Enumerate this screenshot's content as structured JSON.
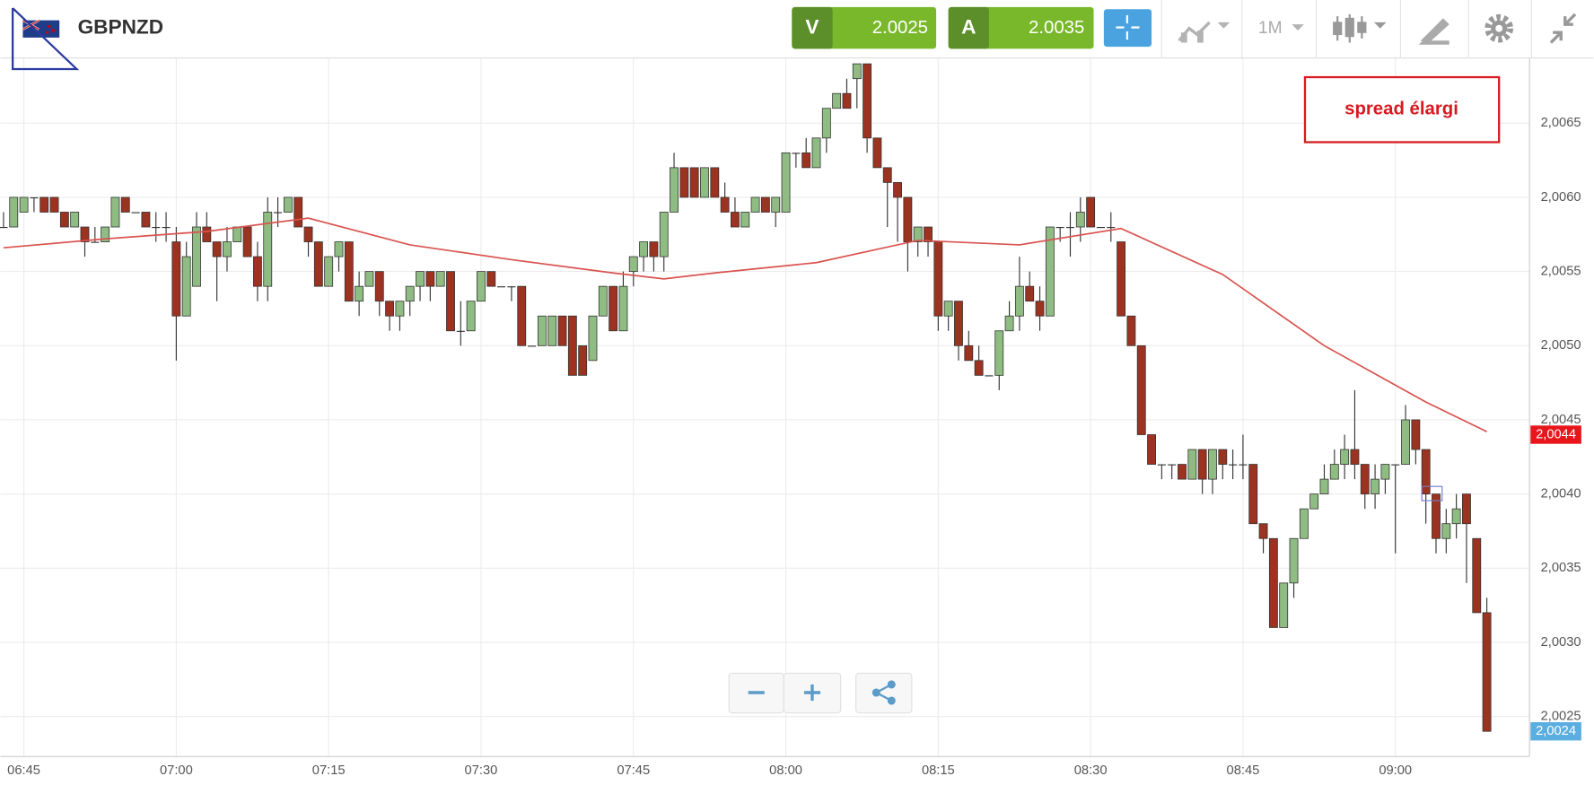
{
  "header": {
    "symbol": "GBPNZD",
    "sell_label": "V",
    "sell_price": "2.0025",
    "buy_label": "A",
    "buy_price": "2.0035",
    "timeframe": "1M"
  },
  "chart_data": {
    "type": "candlestick",
    "x": [
      "06:43",
      "06:44",
      "06:45",
      "06:46",
      "06:47",
      "06:48",
      "06:49",
      "06:50",
      "06:51",
      "06:52",
      "06:53",
      "06:54",
      "06:55",
      "06:56",
      "06:57",
      "06:58",
      "06:59",
      "07:00",
      "07:01",
      "07:02",
      "07:03",
      "07:04",
      "07:05",
      "07:06",
      "07:07",
      "07:08",
      "07:09",
      "07:10",
      "07:11",
      "07:12",
      "07:13",
      "07:14",
      "07:15",
      "07:16",
      "07:17",
      "07:18",
      "07:19",
      "07:20",
      "07:21",
      "07:22",
      "07:23",
      "07:24",
      "07:25",
      "07:26",
      "07:27",
      "07:28",
      "07:29",
      "07:30",
      "07:31",
      "07:32",
      "07:33",
      "07:34",
      "07:35",
      "07:36",
      "07:37",
      "07:38",
      "07:39",
      "07:40",
      "07:41",
      "07:42",
      "07:43",
      "07:44",
      "07:45",
      "07:46",
      "07:47",
      "07:48",
      "07:49",
      "07:50",
      "07:51",
      "07:52",
      "07:53",
      "07:54",
      "07:55",
      "07:56",
      "07:57",
      "07:58",
      "07:59",
      "08:00",
      "08:01",
      "08:02",
      "08:03",
      "08:04",
      "08:05",
      "08:06",
      "08:07",
      "08:08",
      "08:09",
      "08:10",
      "08:11",
      "08:12",
      "08:13",
      "08:14",
      "08:15",
      "08:16",
      "08:17",
      "08:18",
      "08:19",
      "08:20",
      "08:21",
      "08:22",
      "08:23",
      "08:24",
      "08:25",
      "08:26",
      "08:27",
      "08:28",
      "08:29",
      "08:30",
      "08:31",
      "08:32",
      "08:33",
      "08:34",
      "08:35",
      "08:36",
      "08:37",
      "08:38",
      "08:39",
      "08:40",
      "08:41",
      "08:42",
      "08:43",
      "08:44",
      "08:45",
      "08:46",
      "08:47",
      "08:48",
      "08:49",
      "08:50",
      "08:51",
      "08:52",
      "08:53",
      "08:54",
      "08:55",
      "08:56",
      "08:57",
      "08:58",
      "08:59",
      "09:00",
      "09:01",
      "09:02",
      "09:03",
      "09:04",
      "09:05",
      "09:06",
      "09:07",
      "09:08",
      "09:09"
    ],
    "open": [
      2.0058,
      2.0058,
      2.0059,
      2.006,
      2.006,
      2.006,
      2.0059,
      2.0058,
      2.0058,
      2.0057,
      2.0057,
      2.0058,
      2.006,
      2.0059,
      2.0059,
      2.0058,
      2.0058,
      2.0057,
      2.0052,
      2.0054,
      2.0058,
      2.0057,
      2.0056,
      2.0057,
      2.0058,
      2.0056,
      2.0054,
      2.0059,
      2.0059,
      2.006,
      2.0058,
      2.0057,
      2.0054,
      2.0056,
      2.0057,
      2.0053,
      2.0054,
      2.0055,
      2.0053,
      2.0052,
      2.0053,
      2.0054,
      2.0055,
      2.0054,
      2.0055,
      2.0051,
      2.0051,
      2.0053,
      2.0055,
      2.0054,
      2.0054,
      2.0054,
      2.005,
      2.005,
      2.005,
      2.0052,
      2.0052,
      2.005,
      2.0049,
      2.0052,
      2.0054,
      2.0051,
      2.0055,
      2.0056,
      2.0057,
      2.0056,
      2.0059,
      2.0062,
      2.0062,
      2.006,
      2.0062,
      2.006,
      2.0059,
      2.0058,
      2.0059,
      2.006,
      2.0059,
      2.0059,
      2.0063,
      2.0063,
      2.0062,
      2.0064,
      2.0066,
      2.0067,
      2.0068,
      2.0069,
      2.0064,
      2.0062,
      2.0061,
      2.006,
      2.0057,
      2.0058,
      2.0057,
      2.0052,
      2.0053,
      2.005,
      2.0049,
      2.0048,
      2.0048,
      2.0051,
      2.0052,
      2.0054,
      2.0053,
      2.0052,
      2.0058,
      2.0058,
      2.0058,
      2.006,
      2.0058,
      2.0058,
      2.0057,
      2.0052,
      2.005,
      2.0044,
      2.0042,
      2.0042,
      2.0042,
      2.0041,
      2.0043,
      2.0041,
      2.0043,
      2.0042,
      2.0042,
      2.0042,
      2.0038,
      2.0037,
      2.0031,
      2.0034,
      2.0037,
      2.0039,
      2.004,
      2.0041,
      2.0042,
      2.0043,
      2.0042,
      2.004,
      2.0041,
      2.0042,
      2.0042,
      2.0045,
      2.0043,
      2.004,
      2.0037,
      2.0038,
      2.004,
      2.0037,
      2.0032
    ],
    "high": [
      2.0059,
      2.006,
      2.006,
      2.006,
      2.006,
      2.006,
      2.0059,
      2.0059,
      2.0058,
      2.0058,
      2.0058,
      2.006,
      2.006,
      2.0059,
      2.0059,
      2.0059,
      2.0059,
      2.0058,
      2.0057,
      2.0059,
      2.0059,
      2.0057,
      2.0058,
      2.0058,
      2.0058,
      2.0057,
      2.006,
      2.006,
      2.006,
      2.006,
      2.0058,
      2.0057,
      2.0056,
      2.0057,
      2.0057,
      2.0055,
      2.0055,
      2.0055,
      2.0053,
      2.0053,
      2.0054,
      2.0055,
      2.0055,
      2.0055,
      2.0055,
      2.0053,
      2.0053,
      2.0055,
      2.0055,
      2.0054,
      2.0054,
      2.0054,
      2.005,
      2.0052,
      2.0052,
      2.0052,
      2.0052,
      2.005,
      2.0052,
      2.0054,
      2.0054,
      2.0055,
      2.0056,
      2.0057,
      2.0057,
      2.0059,
      2.0063,
      2.0062,
      2.0062,
      2.0062,
      2.0062,
      2.0061,
      2.006,
      2.0059,
      2.006,
      2.006,
      2.006,
      2.0063,
      2.0063,
      2.0064,
      2.0064,
      2.0066,
      2.0067,
      2.0068,
      2.0069,
      2.0069,
      2.0064,
      2.0062,
      2.0061,
      2.006,
      2.0058,
      2.0058,
      2.0057,
      2.0053,
      2.0053,
      2.0051,
      2.005,
      2.0048,
      2.0051,
      2.0053,
      2.0056,
      2.0055,
      2.0054,
      2.0058,
      2.0058,
      2.0059,
      2.006,
      2.006,
      2.0058,
      2.0059,
      2.0057,
      2.0052,
      2.005,
      2.0044,
      2.0042,
      2.0042,
      2.0042,
      2.0043,
      2.0043,
      2.0043,
      2.0043,
      2.0043,
      2.0044,
      2.0042,
      2.0038,
      2.0037,
      2.0034,
      2.0037,
      2.0039,
      2.004,
      2.0042,
      2.0043,
      2.0044,
      2.0047,
      2.0042,
      2.0042,
      2.0042,
      2.0042,
      2.0046,
      2.0045,
      2.0043,
      2.004,
      2.0039,
      2.004,
      2.004,
      2.0037,
      2.0033
    ],
    "low": [
      2.0058,
      2.0058,
      2.0059,
      2.0059,
      2.0059,
      2.0059,
      2.0058,
      2.0058,
      2.0056,
      2.0057,
      2.0057,
      2.0058,
      2.0059,
      2.0059,
      2.0058,
      2.0057,
      2.0057,
      2.0049,
      2.0052,
      2.0054,
      2.0057,
      2.0053,
      2.0055,
      2.0057,
      2.0056,
      2.0053,
      2.0053,
      2.0058,
      2.0059,
      2.0058,
      2.0056,
      2.0054,
      2.0054,
      2.0055,
      2.0053,
      2.0052,
      2.0054,
      2.0052,
      2.0051,
      2.0051,
      2.0052,
      2.0053,
      2.0053,
      2.0054,
      2.0051,
      2.005,
      2.0051,
      2.0053,
      2.0054,
      2.0054,
      2.0053,
      2.005,
      2.005,
      2.005,
      2.005,
      2.005,
      2.0048,
      2.0048,
      2.0049,
      2.0052,
      2.0051,
      2.0051,
      2.0054,
      2.0055,
      2.0055,
      2.0055,
      2.0059,
      2.006,
      2.006,
      2.006,
      2.006,
      2.0059,
      2.0058,
      2.0058,
      2.0059,
      2.0059,
      2.0058,
      2.0059,
      2.0062,
      2.0062,
      2.0062,
      2.0063,
      2.0066,
      2.0066,
      2.0066,
      2.0063,
      2.0062,
      2.0058,
      2.0057,
      2.0055,
      2.0056,
      2.0056,
      2.0051,
      2.0051,
      2.0049,
      2.0049,
      2.0048,
      2.0048,
      2.0047,
      2.0051,
      2.0051,
      2.0053,
      2.0051,
      2.0052,
      2.0057,
      2.0056,
      2.0057,
      2.0058,
      2.0058,
      2.0057,
      2.0052,
      2.005,
      2.0044,
      2.0042,
      2.0041,
      2.0041,
      2.0041,
      2.0041,
      2.004,
      2.004,
      2.0041,
      2.0041,
      2.0041,
      2.0038,
      2.0036,
      2.0031,
      2.0031,
      2.0033,
      2.0037,
      2.0039,
      2.004,
      2.0041,
      2.0041,
      2.0041,
      2.0039,
      2.0039,
      2.004,
      2.0036,
      2.0042,
      2.0042,
      2.0038,
      2.0036,
      2.0036,
      2.0037,
      2.0034,
      2.0032,
      2.0024
    ],
    "close": [
      2.0058,
      2.006,
      2.006,
      2.006,
      2.0059,
      2.0059,
      2.0058,
      2.0059,
      2.0057,
      2.0057,
      2.0058,
      2.006,
      2.0059,
      2.0059,
      2.0058,
      2.0058,
      2.0058,
      2.0052,
      2.0056,
      2.0058,
      2.0057,
      2.0056,
      2.0057,
      2.0058,
      2.0056,
      2.0054,
      2.0059,
      2.0059,
      2.006,
      2.0058,
      2.0057,
      2.0054,
      2.0056,
      2.0057,
      2.0053,
      2.0054,
      2.0055,
      2.0053,
      2.0052,
      2.0053,
      2.0054,
      2.0055,
      2.0054,
      2.0055,
      2.0051,
      2.0051,
      2.0053,
      2.0055,
      2.0054,
      2.0054,
      2.0054,
      2.005,
      2.005,
      2.0052,
      2.0052,
      2.005,
      2.0048,
      2.0048,
      2.0052,
      2.0054,
      2.0051,
      2.0054,
      2.0056,
      2.0057,
      2.0056,
      2.0059,
      2.0062,
      2.006,
      2.006,
      2.0062,
      2.006,
      2.0059,
      2.0058,
      2.0059,
      2.006,
      2.0059,
      2.006,
      2.0063,
      2.0063,
      2.0062,
      2.0064,
      2.0066,
      2.0067,
      2.0066,
      2.0069,
      2.0064,
      2.0062,
      2.0061,
      2.006,
      2.0057,
      2.0058,
      2.0057,
      2.0052,
      2.0053,
      2.005,
      2.0049,
      2.0048,
      2.0048,
      2.0051,
      2.0052,
      2.0054,
      2.0053,
      2.0052,
      2.0058,
      2.0058,
      2.0058,
      2.0059,
      2.0058,
      2.0058,
      2.0058,
      2.0052,
      2.005,
      2.0044,
      2.0042,
      2.0042,
      2.0042,
      2.0041,
      2.0043,
      2.0041,
      2.0043,
      2.0042,
      2.0042,
      2.0042,
      2.0038,
      2.0037,
      2.0031,
      2.0034,
      2.0037,
      2.0039,
      2.004,
      2.0041,
      2.0042,
      2.0043,
      2.0042,
      2.004,
      2.0041,
      2.0042,
      2.0042,
      2.0045,
      2.0043,
      2.004,
      2.0037,
      2.0038,
      2.0039,
      2.0038,
      2.0032,
      2.0024
    ],
    "up_color": "#8fbc82",
    "down_color": "#9c3320",
    "xlim": [
      "06:43",
      "09:13"
    ],
    "xticks": [
      "06:45",
      "07:00",
      "07:15",
      "07:30",
      "07:45",
      "08:00",
      "08:15",
      "08:30",
      "08:45",
      "09:00"
    ],
    "ylim": [
      2.00223,
      2.00694
    ],
    "yticks": [
      {
        "value": 2.0025,
        "label": "2,0025"
      },
      {
        "value": 2.003,
        "label": "2,0030"
      },
      {
        "value": 2.0035,
        "label": "2,0035"
      },
      {
        "value": 2.004,
        "label": "2,0040"
      },
      {
        "value": 2.0045,
        "label": "2,0045"
      },
      {
        "value": 2.005,
        "label": "2,0050"
      },
      {
        "value": 2.0055,
        "label": "2,0055"
      },
      {
        "value": 2.006,
        "label": "2,0060"
      },
      {
        "value": 2.0065,
        "label": "2,0065"
      }
    ],
    "grid": true,
    "moving_average": {
      "color": "#d9534f",
      "x": [
        "06:43",
        "06:53",
        "07:03",
        "07:13",
        "07:23",
        "07:33",
        "07:43",
        "07:48",
        "07:53",
        "08:03",
        "08:13",
        "08:23",
        "08:33",
        "08:43",
        "08:53",
        "09:03",
        "09:09"
      ],
      "values": [
        2.00566,
        2.00572,
        2.00577,
        2.00586,
        2.00568,
        2.00558,
        2.00549,
        2.00545,
        2.00549,
        2.00556,
        2.00571,
        2.00568,
        2.00579,
        2.00548,
        2.005,
        2.00462,
        2.00442
      ]
    },
    "price_markers": [
      {
        "value": 2.0044,
        "label": "2,0044",
        "color": "#e8161b"
      },
      {
        "value": 2.0024,
        "label": "2,0024",
        "color": "#5aaee0"
      }
    ],
    "annotation": "spread élargi"
  }
}
